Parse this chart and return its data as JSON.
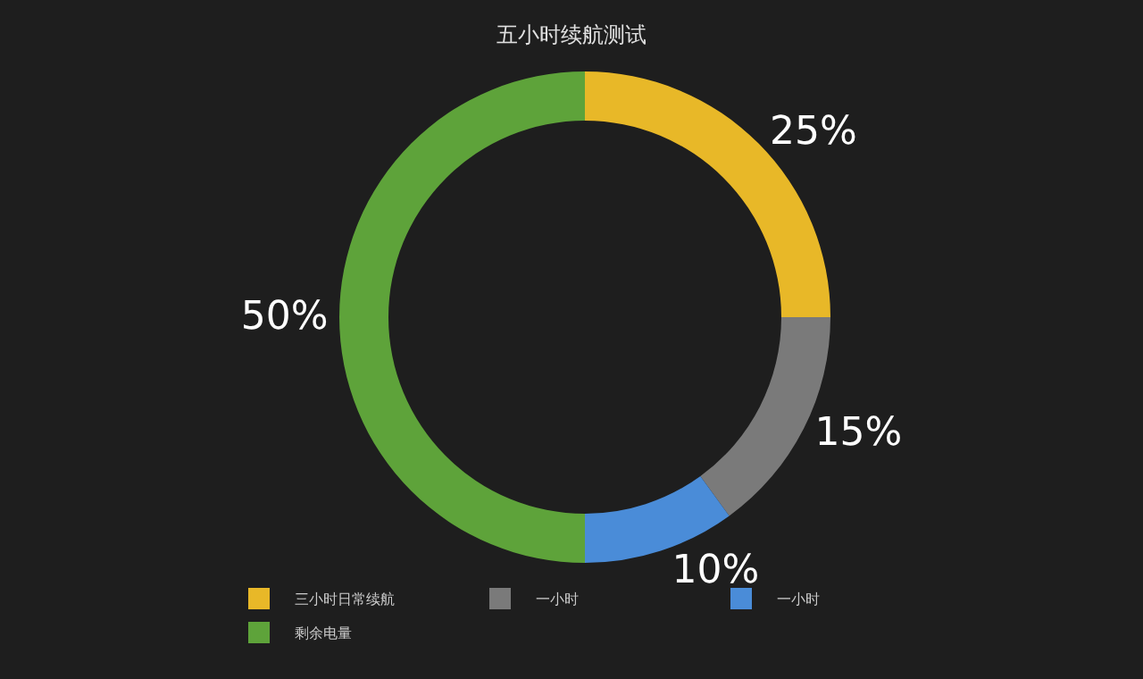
{
  "chart_data": {
    "type": "donut",
    "title": "五小时续航测试",
    "categories": [
      "三小时日常续航",
      "一小时",
      "一小时",
      "剩余电量"
    ],
    "values": [
      25,
      15,
      10,
      50
    ],
    "colors": [
      "#e8b828",
      "#7a7a7a",
      "#4a8cd8",
      "#5ea33a"
    ],
    "value_labels": [
      "25%",
      "15%",
      "10%",
      "50%"
    ],
    "legend": "bottom left"
  }
}
